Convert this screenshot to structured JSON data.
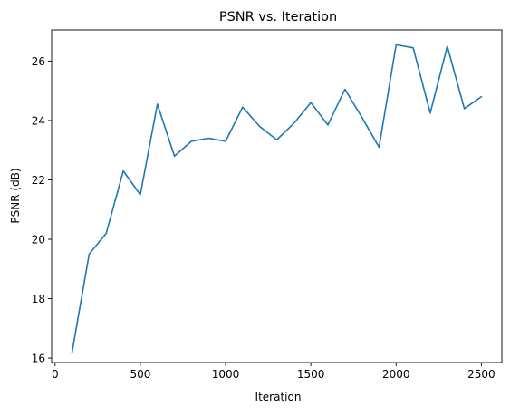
{
  "chart_data": {
    "type": "line",
    "title": "PSNR vs. Iteration",
    "xlabel": "Iteration",
    "ylabel": "PSNR (dB)",
    "xlim": [
      -20,
      2620
    ],
    "ylim": [
      15.85,
      27.05
    ],
    "xticks": [
      0,
      500,
      1000,
      1500,
      2000,
      2500
    ],
    "yticks": [
      16,
      18,
      20,
      22,
      24,
      26
    ],
    "grid": false,
    "legend": "none",
    "series": [
      {
        "color": "#1f77b4",
        "x": [
          100,
          200,
          300,
          400,
          500,
          600,
          700,
          800,
          900,
          1000,
          1100,
          1200,
          1300,
          1400,
          1500,
          1600,
          1700,
          1800,
          1900,
          2000,
          2100,
          2200,
          2300,
          2400,
          2500
        ],
        "y": [
          16.2,
          19.5,
          20.2,
          22.3,
          21.5,
          24.55,
          22.8,
          23.3,
          23.4,
          23.3,
          24.45,
          23.8,
          23.35,
          23.9,
          24.6,
          23.85,
          25.05,
          24.1,
          23.1,
          26.55,
          26.45,
          24.25,
          26.5,
          24.4,
          24.8
        ]
      }
    ]
  }
}
